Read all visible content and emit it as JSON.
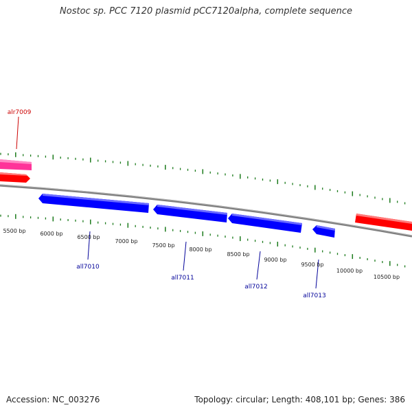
{
  "header": {
    "title": "Nostoc sp. PCC 7120 plasmid pCC7120alpha, complete sequence"
  },
  "footer": {
    "accession": "Accession: NC_003276",
    "summary": "Topology: circular; Length: 408,101 bp; Genes: 386"
  },
  "colors": {
    "forward_strand": "#ff0000",
    "reverse_strand": "#0000ff",
    "highlight_gene": "#ff3399",
    "tick": "#1a7a1a",
    "backbone": "#808080",
    "forward_label": "#cc0000",
    "reverse_label": "#000099"
  },
  "scale": {
    "unit": "bp",
    "labels": [
      "5500 bp",
      "6000 bp",
      "6500 bp",
      "7000 bp",
      "7500 bp",
      "8000 bp",
      "8500 bp",
      "9000 bp",
      "9500 bp",
      "10000 bp",
      "10500 bp"
    ]
  },
  "genes": [
    {
      "name": "alr7009",
      "strand": "forward",
      "labeled": true
    },
    {
      "name": "all7010",
      "strand": "reverse",
      "labeled": true
    },
    {
      "name": "all7011",
      "strand": "reverse",
      "labeled": true
    },
    {
      "name": "all7012",
      "strand": "reverse",
      "labeled": true
    },
    {
      "name": "all7013",
      "strand": "reverse",
      "labeled": true
    }
  ]
}
